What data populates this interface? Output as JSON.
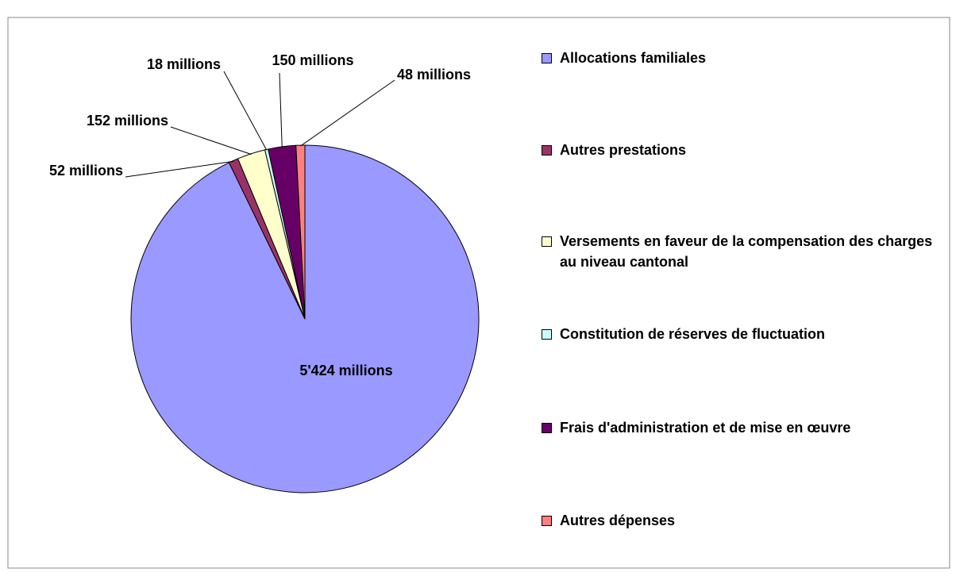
{
  "chart_data": {
    "type": "pie",
    "categories": [
      "Allocations familiales",
      "Autres prestations",
      "Versements en faveur de la compensation des charges au niveau cantonal",
      "Constitution de réserves de fluctuation",
      "Frais d'administration et de mise en œuvre",
      "Autres dépenses"
    ],
    "values": [
      5424,
      52,
      152,
      18,
      150,
      48
    ],
    "value_labels": [
      "5'424 millions",
      "52 millions",
      "152 millions",
      "18 millions",
      "150 millions",
      "48 millions"
    ],
    "colors": [
      "#9999ff",
      "#993366",
      "#ffffcc",
      "#ccffff",
      "#660066",
      "#ff8080"
    ],
    "legend": "right"
  }
}
